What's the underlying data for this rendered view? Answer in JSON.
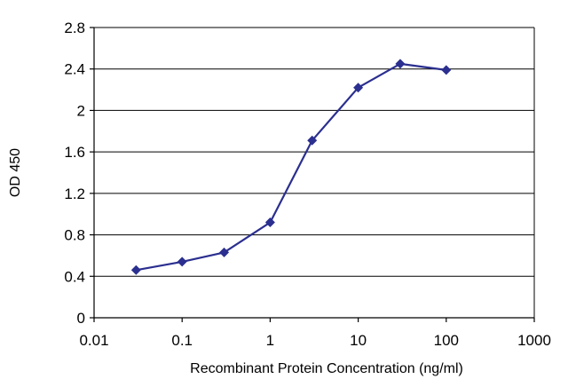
{
  "chart_data": {
    "type": "line",
    "title": "",
    "xlabel": "Recombinant Protein Concentration (ng/ml)",
    "ylabel": "OD 450",
    "x_scale": "log",
    "xlim": [
      0.01,
      1000
    ],
    "ylim": [
      0,
      2.8
    ],
    "x_ticks": [
      0.01,
      0.1,
      1,
      10,
      100,
      1000
    ],
    "x_tick_labels": [
      "0.01",
      "0.1",
      "1",
      "10",
      "100",
      "1000"
    ],
    "y_ticks": [
      0,
      0.4,
      0.8,
      1.2,
      1.6,
      2,
      2.4,
      2.8
    ],
    "y_tick_labels": [
      "0",
      "0.4",
      "0.8",
      "1.2",
      "1.6",
      "2",
      "2.4",
      "2.8"
    ],
    "grid": "horizontal",
    "legend": "none",
    "series": [
      {
        "color": "#2b2f8f",
        "marker": "diamond",
        "x": [
          0.03,
          0.1,
          0.3,
          1,
          3,
          10,
          30,
          100
        ],
        "y": [
          0.46,
          0.54,
          0.63,
          0.92,
          1.71,
          2.22,
          2.45,
          2.39
        ]
      }
    ]
  }
}
